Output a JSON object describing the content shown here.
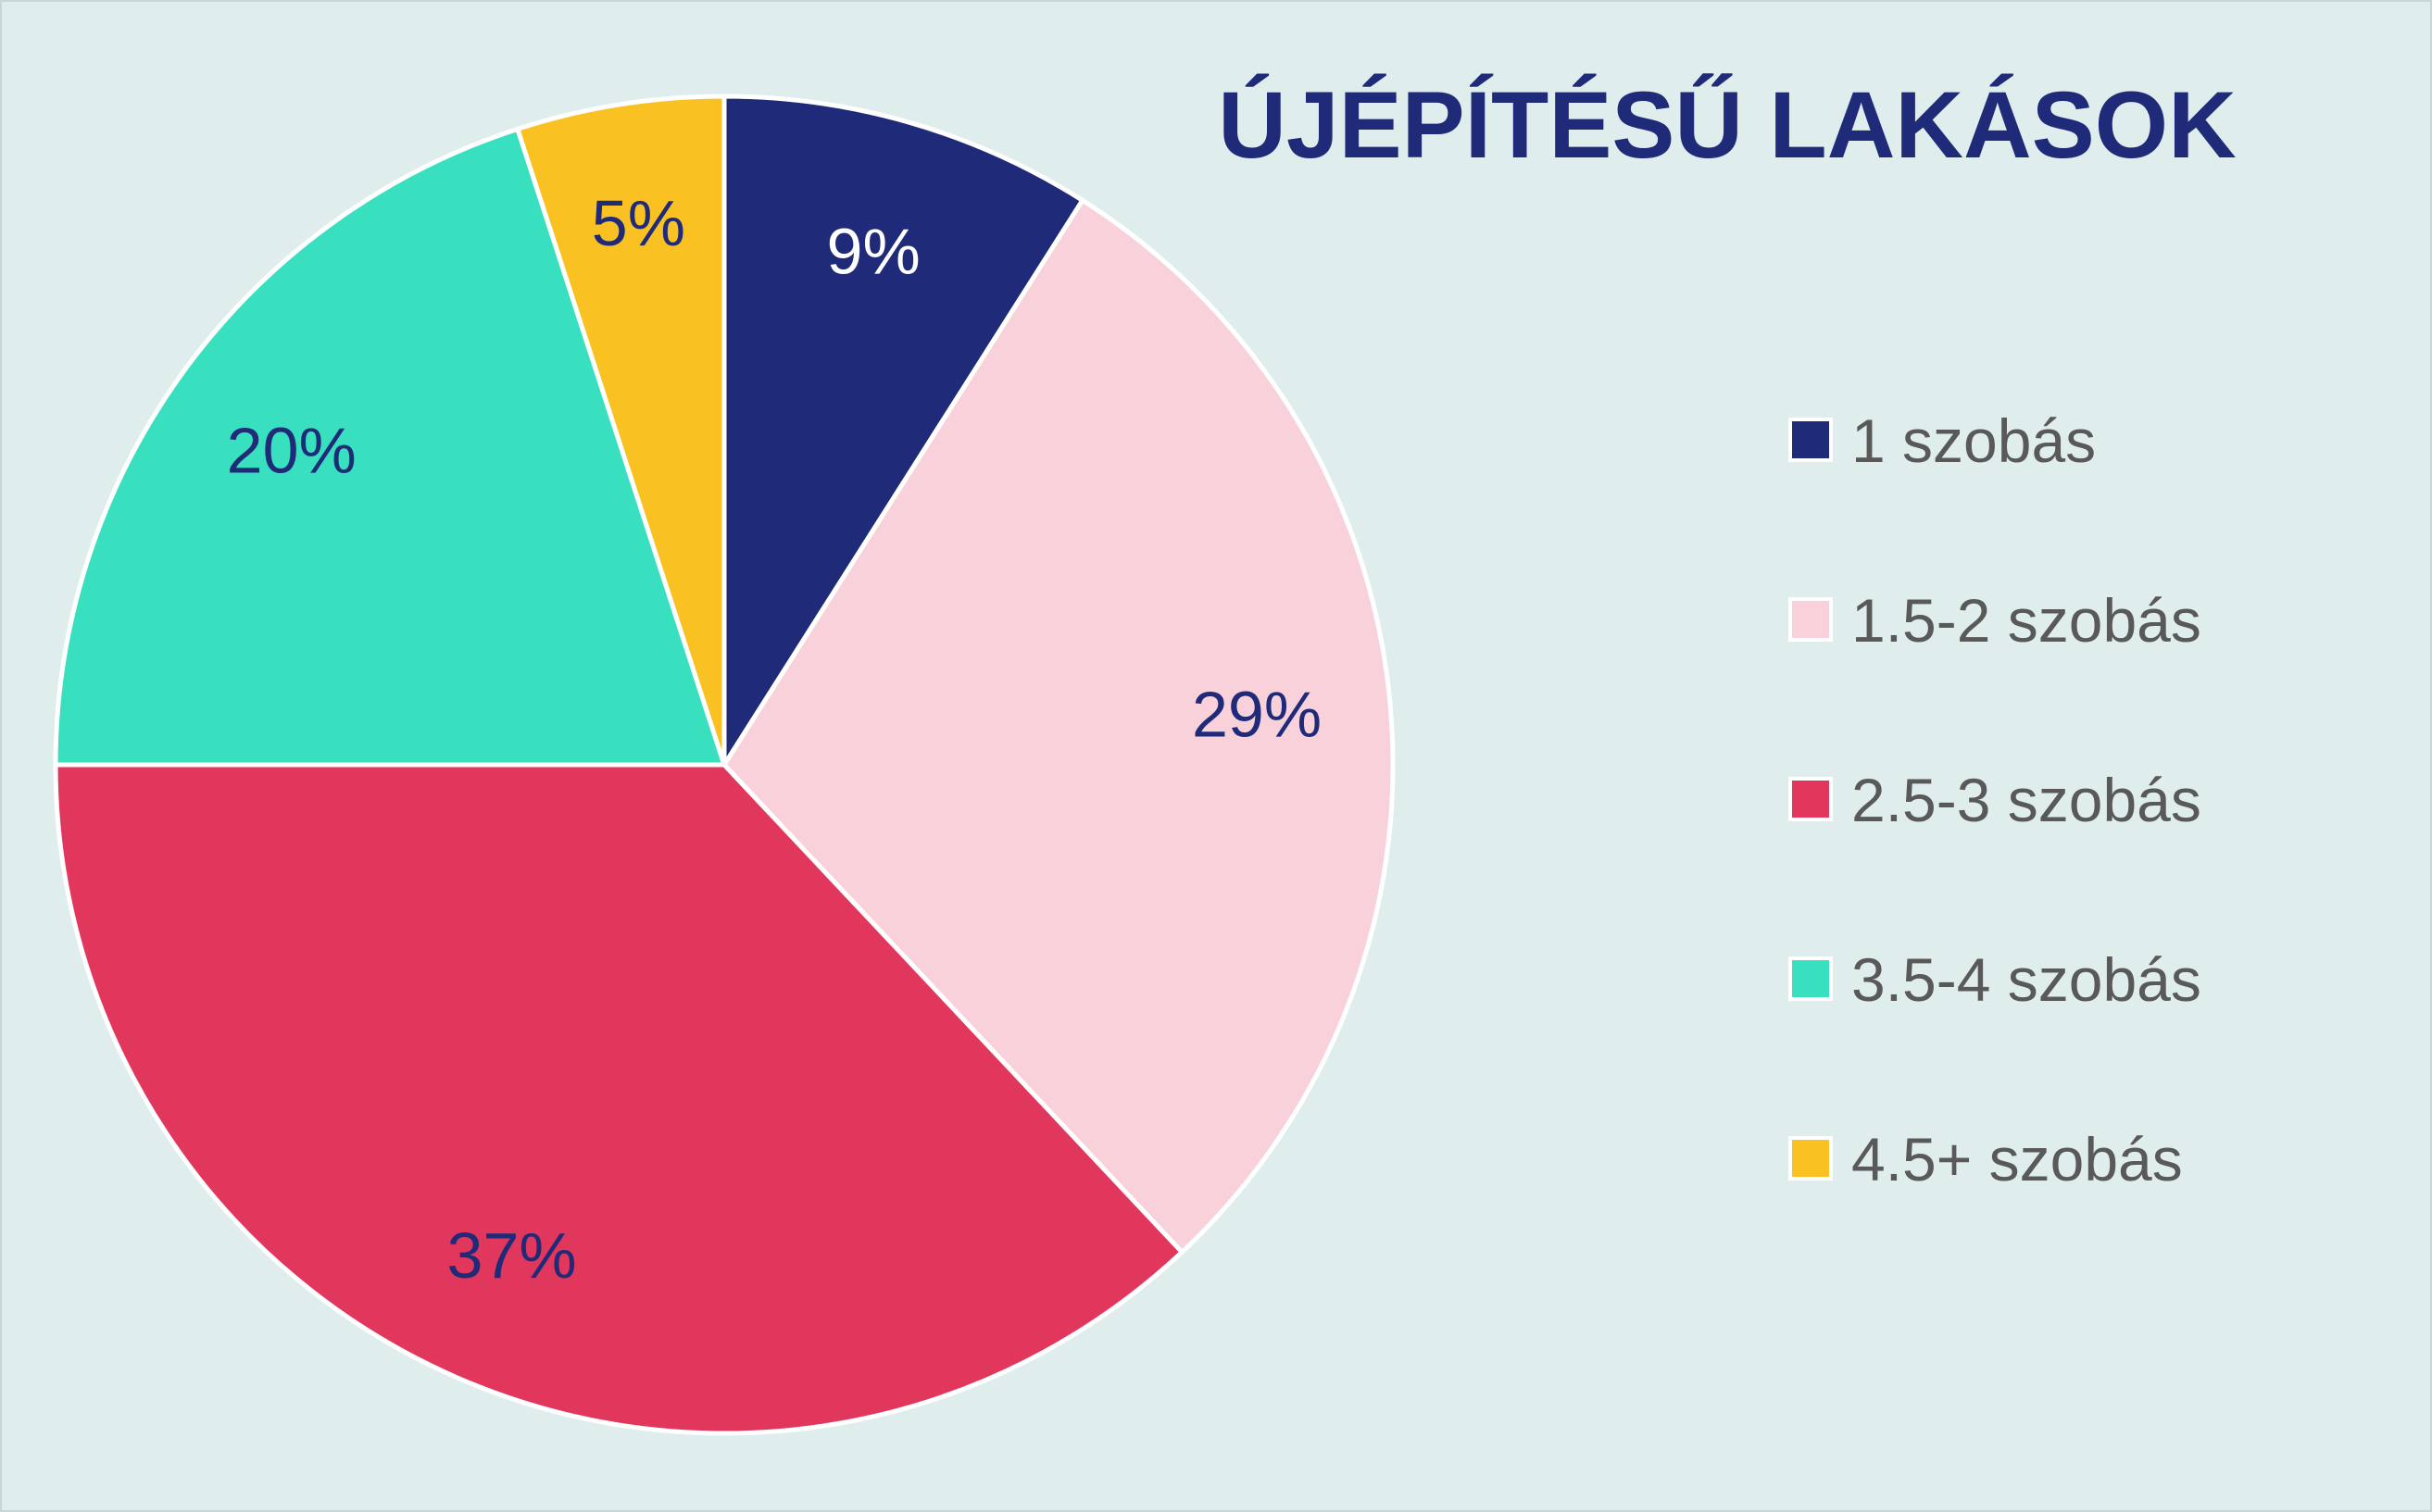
{
  "chart_data": {
    "type": "pie",
    "title": "ÚJÉPÍTÉSŰ LAKÁSOK",
    "categories": [
      "1 szobás",
      "1.5-2 szobás",
      "2.5-3 szobás",
      "3.5-4 szobás",
      "4.5+ szobás"
    ],
    "values": [
      9,
      29,
      37,
      20,
      5
    ],
    "value_labels": [
      "9%",
      "29%",
      "37%",
      "20%",
      "5%"
    ],
    "colors": [
      "#1f2b78",
      "#f9d1da",
      "#e2375c",
      "#38e0bf",
      "#f9c222"
    ],
    "label_colors": [
      "#ffffff",
      "#1f2b78",
      "#1f2b78",
      "#1f2b78",
      "#1f2b78"
    ],
    "legend_position": "right"
  }
}
